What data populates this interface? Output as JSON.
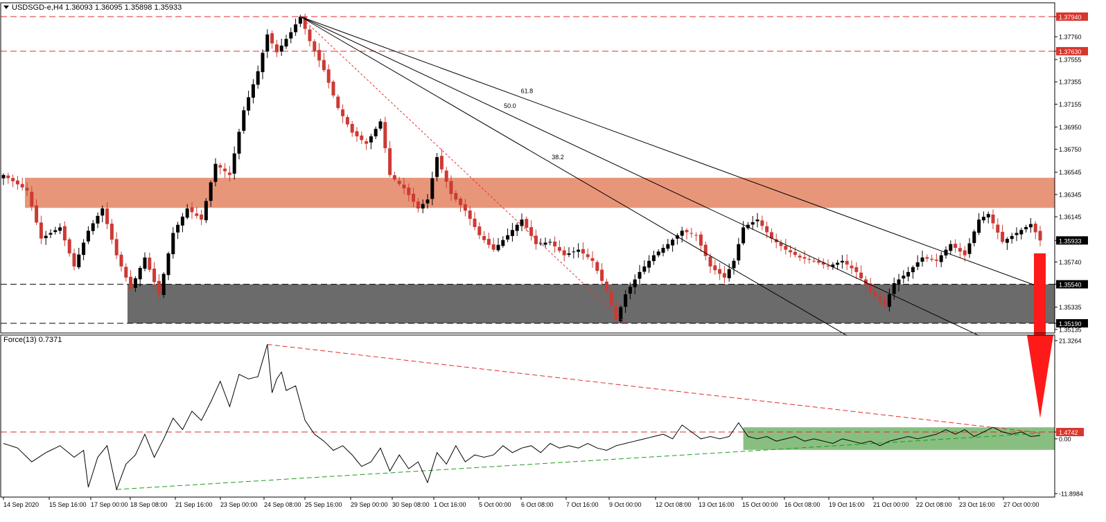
{
  "header": {
    "symbol_line": "USDSGD-e,H4  1.36093 1.36095 1.35898 1.35933",
    "indicator_line": "Force(13) 0.7371"
  },
  "colors": {
    "bull": "#000000",
    "bear": "#cc3a34",
    "resistance_zone": "#e8967a",
    "support_zone": "#6b6b6b",
    "force_zone": "#88bf80",
    "red_line": "#e22b2b",
    "green_line": "#1f9a1f",
    "arrow": "#ff1a1a"
  },
  "chart_data": [
    {
      "type": "candlestick",
      "panel": "price",
      "title": "USDSGD-e,H4",
      "ohlc_header": [
        1.36093,
        1.36095,
        1.35898,
        1.35933
      ],
      "ylim": [
        1.351,
        1.3805
      ],
      "y_ticks": [
        "1.37940",
        "1.37760",
        "1.37630",
        "1.37555",
        "1.37355",
        "1.37155",
        "1.36950",
        "1.36750",
        "1.36545",
        "1.36345",
        "1.36145",
        "1.35933",
        "1.35740",
        "1.35540",
        "1.35335",
        "1.35190",
        "1.35135"
      ],
      "x_ticks": [
        "14 Sep 2020",
        "15 Sep 16:00",
        "17 Sep 00:00",
        "18 Sep 08:00",
        "21 Sep 16:00",
        "23 Sep 00:00",
        "24 Sep 08:00",
        "25 Sep 16:00",
        "29 Sep 00:00",
        "30 Sep 08:00",
        "1 Oct 16:00",
        "5 Oct 00:00",
        "6 Oct 08:00",
        "7 Oct 16:00",
        "9 Oct 00:00",
        "12 Oct 08:00",
        "13 Oct 16:00",
        "15 Oct 00:00",
        "16 Oct 08:00",
        "19 Oct 16:00",
        "21 Oct 00:00",
        "22 Oct 08:00",
        "23 Oct 16:00",
        "27 Oct 00:00"
      ],
      "anchor_closes": [
        [
          0,
          1.3652
        ],
        [
          5,
          1.3638
        ],
        [
          8,
          1.3595
        ],
        [
          12,
          1.3605
        ],
        [
          15,
          1.357
        ],
        [
          18,
          1.3602
        ],
        [
          21,
          1.3622
        ],
        [
          24,
          1.358
        ],
        [
          27,
          1.355
        ],
        [
          30,
          1.3578
        ],
        [
          33,
          1.3545
        ],
        [
          36,
          1.36
        ],
        [
          39,
          1.3622
        ],
        [
          42,
          1.3612
        ],
        [
          45,
          1.3662
        ],
        [
          48,
          1.3652
        ],
        [
          51,
          1.371
        ],
        [
          54,
          1.3745
        ],
        [
          56,
          1.3778
        ],
        [
          58,
          1.3762
        ],
        [
          61,
          1.378
        ],
        [
          63,
          1.3794
        ],
        [
          65,
          1.3772
        ],
        [
          68,
          1.3746
        ],
        [
          71,
          1.3712
        ],
        [
          74,
          1.369
        ],
        [
          77,
          1.368
        ],
        [
          80,
          1.37
        ],
        [
          82,
          1.3652
        ],
        [
          85,
          1.364
        ],
        [
          88,
          1.3622
        ],
        [
          90,
          1.363
        ],
        [
          92,
          1.3668
        ],
        [
          95,
          1.3635
        ],
        [
          98,
          1.362
        ],
        [
          101,
          1.3598
        ],
        [
          104,
          1.3585
        ],
        [
          107,
          1.3598
        ],
        [
          110,
          1.3612
        ],
        [
          113,
          1.359
        ],
        [
          116,
          1.3592
        ],
        [
          119,
          1.358
        ],
        [
          122,
          1.3585
        ],
        [
          125,
          1.3575
        ],
        [
          128,
          1.3548
        ],
        [
          130,
          1.3522
        ],
        [
          132,
          1.3545
        ],
        [
          135,
          1.3565
        ],
        [
          138,
          1.358
        ],
        [
          141,
          1.359
        ],
        [
          144,
          1.3602
        ],
        [
          147,
          1.3598
        ],
        [
          150,
          1.357
        ],
        [
          153,
          1.356
        ],
        [
          155,
          1.3575
        ],
        [
          157,
          1.3605
        ],
        [
          160,
          1.3612
        ],
        [
          163,
          1.3595
        ],
        [
          166,
          1.3585
        ],
        [
          169,
          1.3578
        ],
        [
          172,
          1.3575
        ],
        [
          175,
          1.357
        ],
        [
          178,
          1.3575
        ],
        [
          181,
          1.3565
        ],
        [
          184,
          1.3548
        ],
        [
          187,
          1.3535
        ],
        [
          189,
          1.3555
        ],
        [
          192,
          1.3565
        ],
        [
          195,
          1.3578
        ],
        [
          198,
          1.3575
        ],
        [
          201,
          1.359
        ],
        [
          204,
          1.358
        ],
        [
          207,
          1.3612
        ],
        [
          209,
          1.3617
        ],
        [
          212,
          1.3592
        ],
        [
          215,
          1.36
        ],
        [
          218,
          1.3608
        ],
        [
          220,
          1.35933
        ]
      ],
      "horizontal_levels": [
        {
          "value": 1.3794,
          "label": "1.37940",
          "style": "red-dashed"
        },
        {
          "value": 1.3763,
          "label": "1.37630",
          "style": "red-dashed"
        },
        {
          "value": 1.3554,
          "label": "1.35540",
          "style": "black-dashed"
        },
        {
          "value": 1.3519,
          "label": "1.35190",
          "style": "black-dashed"
        }
      ],
      "current_price": {
        "value": 1.35933,
        "label": "1.35933"
      },
      "zones": [
        {
          "name": "resistance",
          "from": 1.36225,
          "to": 1.36495
        },
        {
          "name": "support",
          "from": 1.3519,
          "to": 1.3554
        }
      ],
      "fibonacci_fan": {
        "origin": {
          "index": 63,
          "value": 1.3794
        },
        "lines": [
          {
            "label": "61.8",
            "end_index": 219,
            "end_value": 1.3553
          },
          {
            "label": "50.0",
            "end_index": 207,
            "end_value": 1.3508
          },
          {
            "label": "38.2",
            "end_index": 179,
            "end_value": 1.3508
          }
        ],
        "red_dotted_end": {
          "index": 132,
          "value": 1.3519
        }
      }
    },
    {
      "type": "line",
      "panel": "indicator",
      "title": "Force(13)",
      "current_value": 0.7371,
      "ylim": [
        -11.8984,
        21.3264
      ],
      "y_ticks": [
        "21.3264",
        "1.4742",
        "0.00",
        "-11.8984"
      ],
      "anchor_values": [
        [
          0,
          -1.0
        ],
        [
          3,
          -2.0
        ],
        [
          6,
          -5.0
        ],
        [
          9,
          -3.0
        ],
        [
          12,
          -1.5
        ],
        [
          15,
          -4.0
        ],
        [
          17,
          -2.5
        ],
        [
          18,
          -10.5
        ],
        [
          20,
          -4.0
        ],
        [
          22,
          -1.5
        ],
        [
          24,
          -11.0
        ],
        [
          26,
          -5.5
        ],
        [
          28,
          -3.5
        ],
        [
          30,
          1.0
        ],
        [
          32,
          -4.0
        ],
        [
          34,
          0.0
        ],
        [
          36,
          4.5
        ],
        [
          38,
          2.0
        ],
        [
          40,
          6.0
        ],
        [
          42,
          4.0
        ],
        [
          44,
          8.0
        ],
        [
          46,
          12.5
        ],
        [
          48,
          7.0
        ],
        [
          50,
          14.0
        ],
        [
          52,
          13.0
        ],
        [
          54,
          13.5
        ],
        [
          56,
          20.5
        ],
        [
          57,
          10.0
        ],
        [
          58,
          13.0
        ],
        [
          59,
          14.5
        ],
        [
          60,
          10.5
        ],
        [
          62,
          11.5
        ],
        [
          64,
          4.0
        ],
        [
          66,
          1.0
        ],
        [
          68,
          -0.5
        ],
        [
          70,
          -2.5
        ],
        [
          72,
          -1.5
        ],
        [
          74,
          -3.5
        ],
        [
          76,
          -6.0
        ],
        [
          78,
          -5.0
        ],
        [
          80,
          -2.0
        ],
        [
          82,
          -7.0
        ],
        [
          84,
          -3.5
        ],
        [
          86,
          -6.5
        ],
        [
          88,
          -5.0
        ],
        [
          90,
          -9.5
        ],
        [
          92,
          -3.0
        ],
        [
          94,
          -5.5
        ],
        [
          96,
          -1.5
        ],
        [
          98,
          -5.0
        ],
        [
          100,
          -3.5
        ],
        [
          102,
          -4.0
        ],
        [
          104,
          -3.5
        ],
        [
          106,
          -1.5
        ],
        [
          108,
          -3.0
        ],
        [
          110,
          -2.0
        ],
        [
          112,
          -1.5
        ],
        [
          114,
          -3.0
        ],
        [
          116,
          -1.0
        ],
        [
          118,
          -2.0
        ],
        [
          120,
          -1.5
        ],
        [
          122,
          -2.0
        ],
        [
          124,
          -1.0
        ],
        [
          126,
          -2.0
        ],
        [
          128,
          -2.5
        ],
        [
          130,
          -1.5
        ],
        [
          132,
          -1.0
        ],
        [
          134,
          -0.5
        ],
        [
          136,
          0.0
        ],
        [
          138,
          0.5
        ],
        [
          140,
          1.0
        ],
        [
          142,
          0.0
        ],
        [
          144,
          3.0
        ],
        [
          146,
          1.5
        ],
        [
          148,
          0.0
        ],
        [
          150,
          0.5
        ],
        [
          152,
          0.0
        ],
        [
          154,
          0.5
        ],
        [
          156,
          3.5
        ],
        [
          158,
          0.5
        ],
        [
          160,
          0.0
        ],
        [
          162,
          0.5
        ],
        [
          164,
          -0.5
        ],
        [
          166,
          0.0
        ],
        [
          168,
          0.5
        ],
        [
          170,
          -0.5
        ],
        [
          172,
          0.0
        ],
        [
          174,
          -0.5
        ],
        [
          176,
          -1.0
        ],
        [
          178,
          0.0
        ],
        [
          180,
          -0.5
        ],
        [
          182,
          -1.0
        ],
        [
          184,
          -0.5
        ],
        [
          186,
          -1.5
        ],
        [
          188,
          -0.5
        ],
        [
          190,
          0.0
        ],
        [
          192,
          0.5
        ],
        [
          194,
          0.0
        ],
        [
          196,
          0.5
        ],
        [
          198,
          1.0
        ],
        [
          200,
          2.0
        ],
        [
          202,
          1.0
        ],
        [
          204,
          2.0
        ],
        [
          206,
          0.5
        ],
        [
          208,
          1.5
        ],
        [
          210,
          2.5
        ],
        [
          212,
          1.5
        ],
        [
          214,
          1.0
        ],
        [
          216,
          1.5
        ],
        [
          218,
          0.5
        ],
        [
          220,
          0.7371
        ]
      ],
      "horizontal_levels": [
        {
          "value": 1.4742,
          "label": "1.4742",
          "style": "red-dashed"
        }
      ],
      "zones": [
        {
          "name": "force-support",
          "from": -2.4,
          "to": 2.5,
          "start_index": 157
        }
      ],
      "trendlines": [
        {
          "name": "red-descending",
          "from": {
            "index": 56,
            "value": 20.5
          },
          "to": {
            "index": 220,
            "value": 1.3
          }
        },
        {
          "name": "green-ascending",
          "from": {
            "index": 24,
            "value": -11.0
          },
          "to": {
            "index": 220,
            "value": 1.2
          }
        }
      ]
    }
  ]
}
